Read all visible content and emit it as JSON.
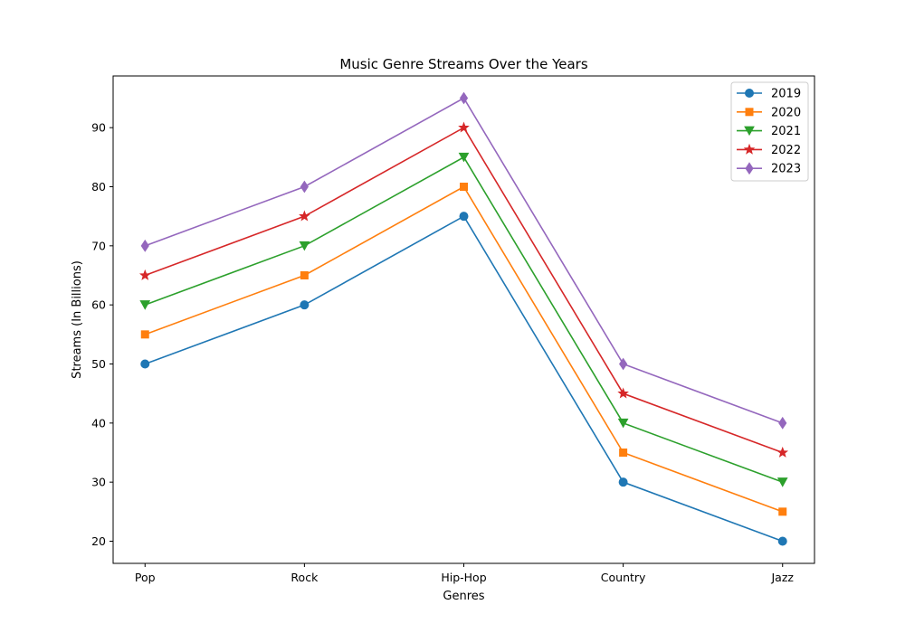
{
  "chart_data": {
    "type": "line",
    "title": "Music Genre Streams Over the Years",
    "xlabel": "Genres",
    "ylabel": "Streams (In Billions)",
    "categories": [
      "Pop",
      "Rock",
      "Hip-Hop",
      "Country",
      "Jazz"
    ],
    "ylim": [
      16.25,
      98.75
    ],
    "yticks": [
      20,
      30,
      40,
      50,
      60,
      70,
      80,
      90
    ],
    "grid": false,
    "legend_position": "top-right",
    "series": [
      {
        "name": "2019",
        "color": "#1f77b4",
        "marker": "circle",
        "values": [
          50,
          60,
          75,
          30,
          20
        ]
      },
      {
        "name": "2020",
        "color": "#ff7f0e",
        "marker": "square",
        "values": [
          55,
          65,
          80,
          35,
          25
        ]
      },
      {
        "name": "2021",
        "color": "#2ca02c",
        "marker": "triangle-down",
        "values": [
          60,
          70,
          85,
          40,
          30
        ]
      },
      {
        "name": "2022",
        "color": "#d62728",
        "marker": "star",
        "values": [
          65,
          75,
          90,
          45,
          35
        ]
      },
      {
        "name": "2023",
        "color": "#9467bd",
        "marker": "diamond",
        "values": [
          70,
          80,
          95,
          50,
          40
        ]
      }
    ]
  }
}
